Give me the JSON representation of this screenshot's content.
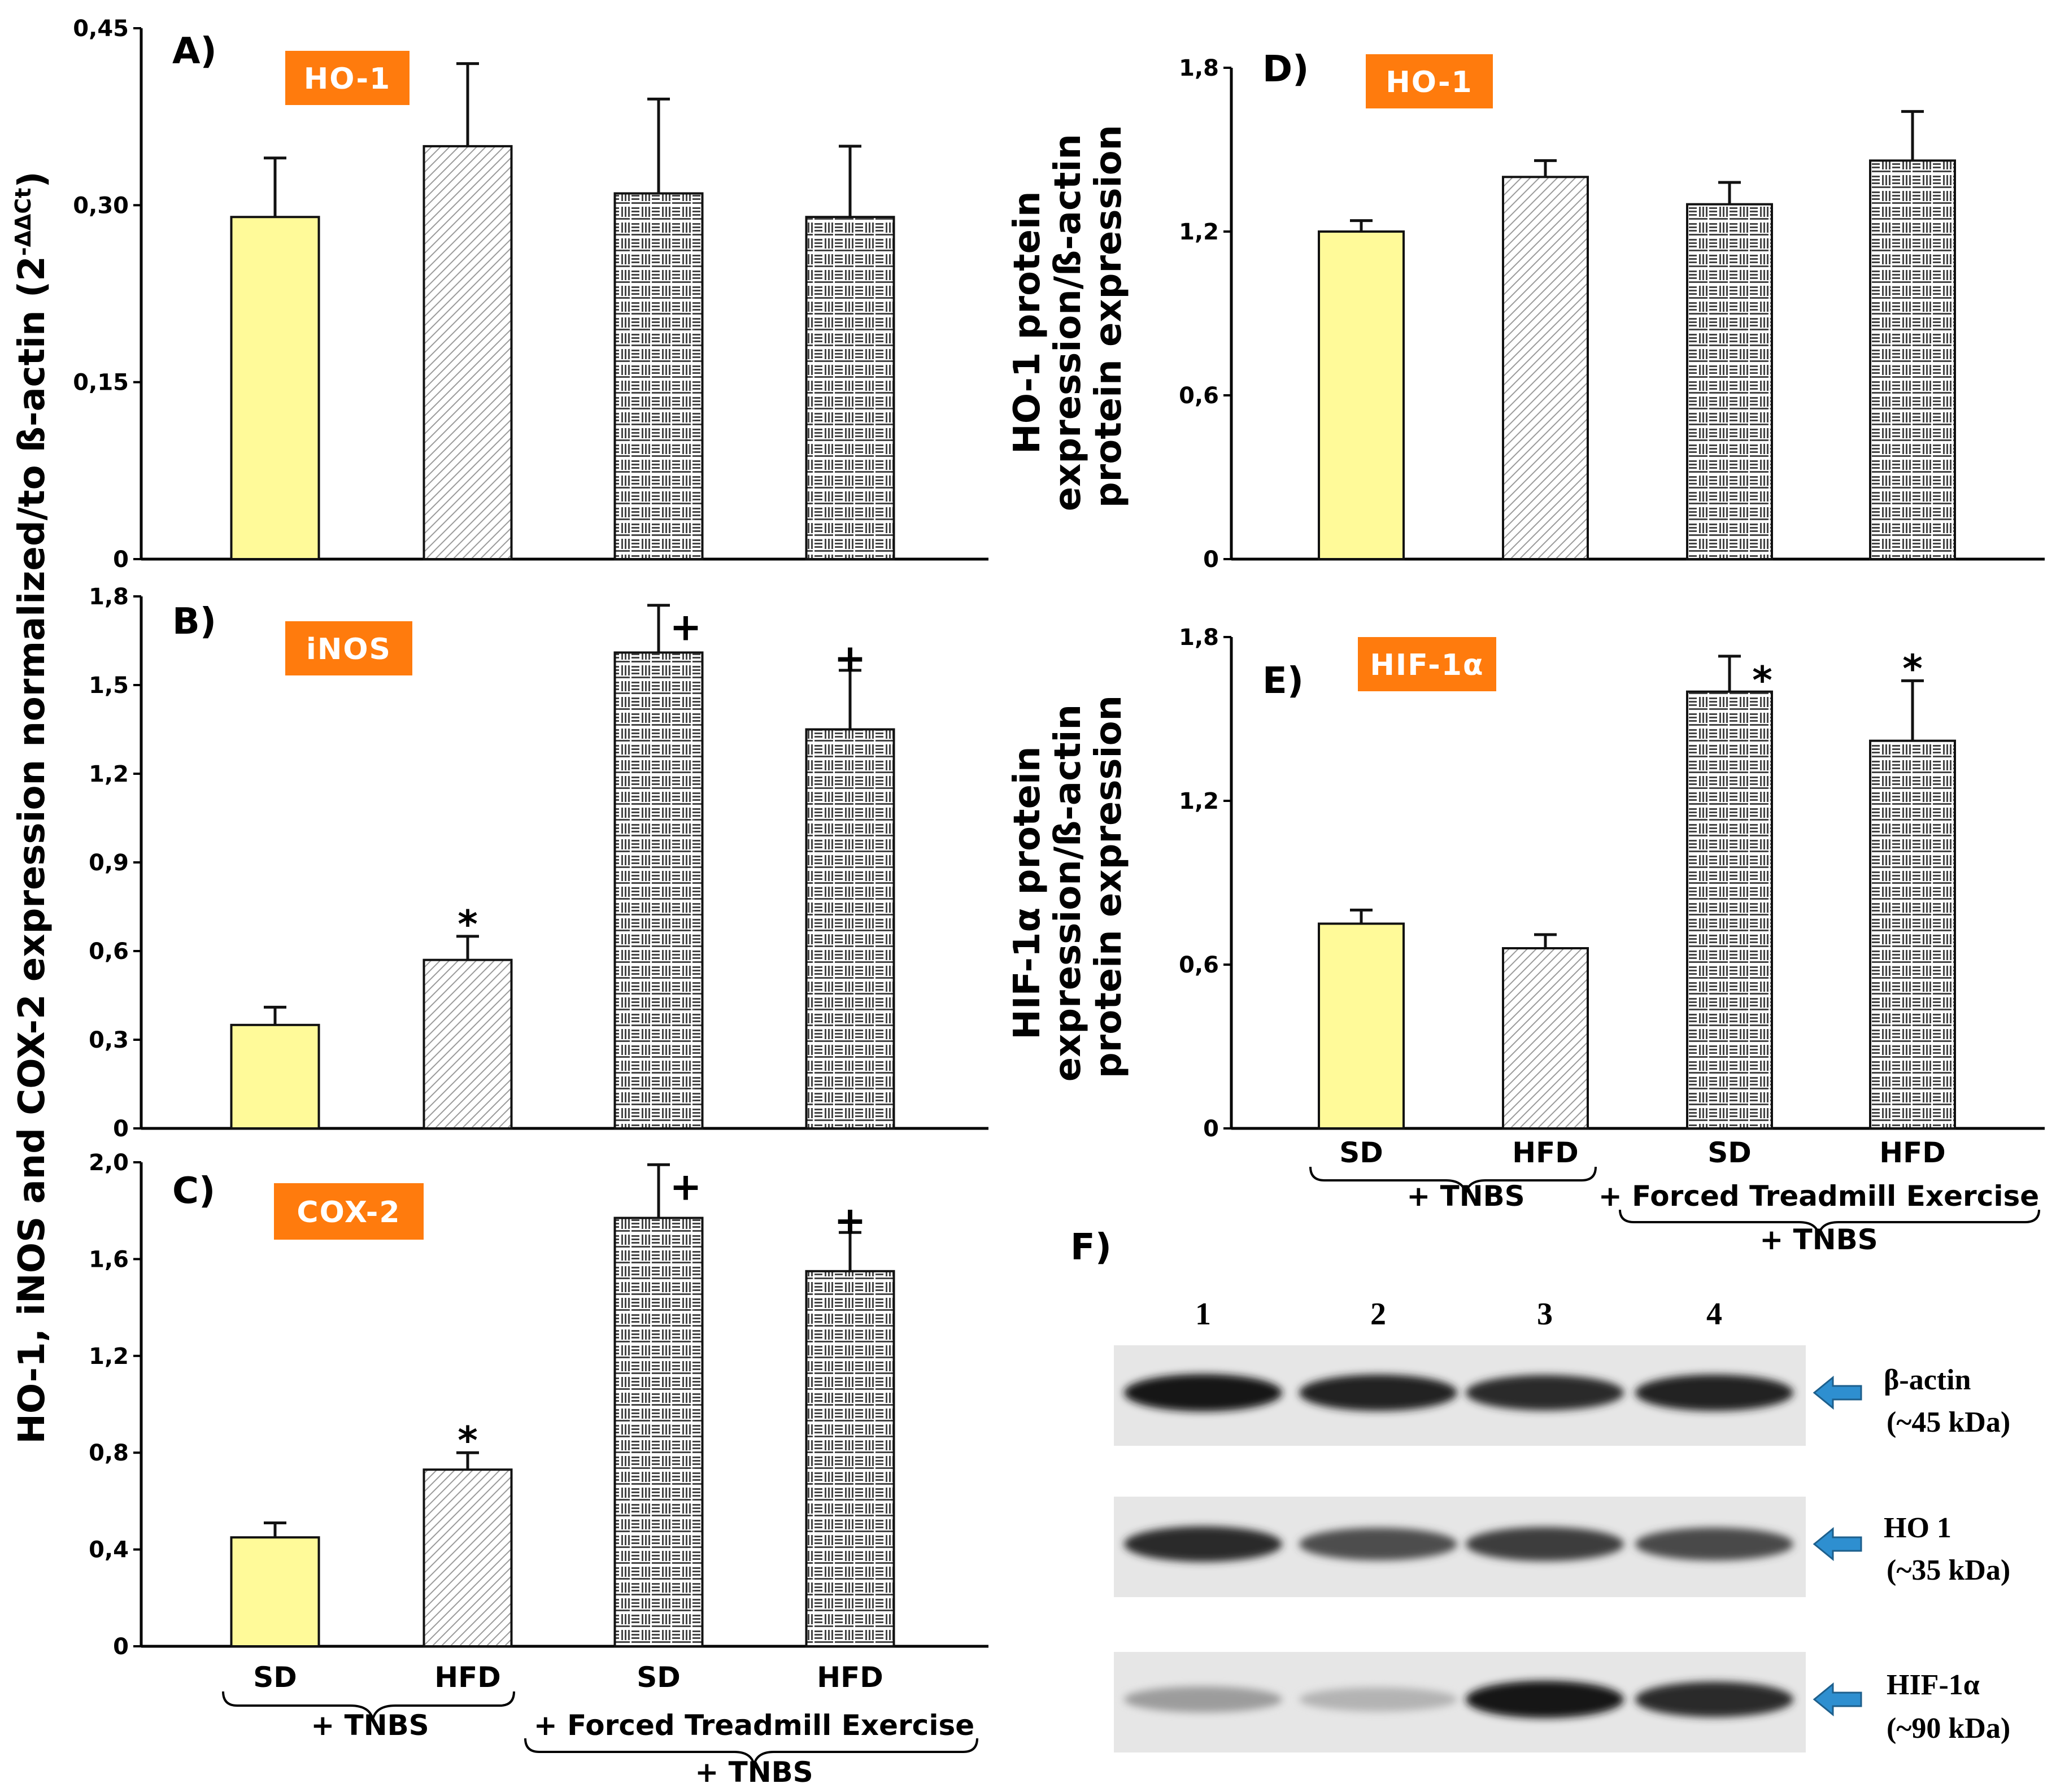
{
  "colors": {
    "badge": "#ff7b0d",
    "sd_fill": "#fffa99",
    "blot_bg": "#e6e6e6",
    "arrow": "#2e8fd0"
  },
  "x_axis": {
    "categories": [
      "SD",
      "HFD",
      "SD",
      "HFD"
    ],
    "group1": "+ TNBS",
    "group2_line1": "+ Forced Treadmill Exercise",
    "group2_line2": "+ TNBS"
  },
  "y_label_left": "HO-1, iNOS and COX-2 expression normalized/to ß-actin (2",
  "y_label_left_sup": "-ΔΔCt",
  "y_label_left_close": ")",
  "y_label_D": [
    "HO-1 protein",
    "expression/ß-actin",
    "protein expression"
  ],
  "y_label_E": [
    "HIF-1α protein",
    "expression/ß-actin",
    "protein expression"
  ],
  "chart_data": [
    {
      "panel": "A)",
      "title": "HO-1",
      "type": "bar",
      "categories": [
        "SD",
        "HFD",
        "SD",
        "HFD"
      ],
      "values": [
        0.29,
        0.35,
        0.31,
        0.29
      ],
      "errors": [
        0.05,
        0.07,
        0.08,
        0.06
      ],
      "marks": [
        "",
        "",
        "",
        ""
      ],
      "ylim": [
        0,
        0.45
      ],
      "ticks": [
        0,
        0.15,
        0.3,
        0.45
      ],
      "tick_labels": [
        "0",
        "0,15",
        "0,30",
        "0,45"
      ]
    },
    {
      "panel": "B)",
      "title": "iNOS",
      "type": "bar",
      "categories": [
        "SD",
        "HFD",
        "SD",
        "HFD"
      ],
      "values": [
        0.35,
        0.57,
        1.61,
        1.35
      ],
      "errors": [
        0.06,
        0.08,
        0.16,
        0.2
      ],
      "marks": [
        "",
        "*",
        "+",
        "+"
      ],
      "ylim": [
        0,
        1.8
      ],
      "ticks": [
        0,
        0.3,
        0.6,
        0.9,
        1.2,
        1.5,
        1.8
      ],
      "tick_labels": [
        "0",
        "0,3",
        "0,6",
        "0,9",
        "1,2",
        "1,5",
        "1,8"
      ]
    },
    {
      "panel": "C)",
      "title": "COX-2",
      "type": "bar",
      "categories": [
        "SD",
        "HFD",
        "SD",
        "HFD"
      ],
      "values": [
        0.45,
        0.73,
        1.77,
        1.55
      ],
      "errors": [
        0.06,
        0.07,
        0.22,
        0.16
      ],
      "marks": [
        "",
        "*",
        "+",
        "+"
      ],
      "ylim": [
        0,
        2.0
      ],
      "ticks": [
        0,
        0.4,
        0.8,
        1.2,
        1.6,
        2.0
      ],
      "tick_labels": [
        "0",
        "0,4",
        "0,8",
        "1,2",
        "1,6",
        "2,0"
      ]
    },
    {
      "panel": "D)",
      "title": "HO-1",
      "type": "bar",
      "categories": [
        "SD",
        "HFD",
        "SD",
        "HFD"
      ],
      "values": [
        1.2,
        1.4,
        1.3,
        1.46
      ],
      "errors": [
        0.04,
        0.06,
        0.08,
        0.18
      ],
      "marks": [
        "",
        "",
        "",
        ""
      ],
      "ylim": [
        0,
        1.8
      ],
      "ticks": [
        0,
        0.6,
        1.2,
        1.8
      ],
      "tick_labels": [
        "0",
        "0,6",
        "1,2",
        "1,8"
      ]
    },
    {
      "panel": "E)",
      "title": "HIF-1α",
      "type": "bar",
      "categories": [
        "SD",
        "HFD",
        "SD",
        "HFD"
      ],
      "values": [
        0.75,
        0.66,
        1.6,
        1.42
      ],
      "errors": [
        0.05,
        0.05,
        0.13,
        0.22
      ],
      "marks": [
        "",
        "",
        "*",
        "*"
      ],
      "ylim": [
        0,
        1.8
      ],
      "ticks": [
        0,
        0.6,
        1.2,
        1.8
      ],
      "tick_labels": [
        "0",
        "0,6",
        "1,2",
        "1,8"
      ]
    }
  ],
  "blot": {
    "panel": "F)",
    "lanes": [
      "1",
      "2",
      "3",
      "4"
    ],
    "rows": [
      {
        "name": "β-actin",
        "size": "(~45 kDa)",
        "intensity": [
          0.95,
          0.9,
          0.85,
          0.9
        ]
      },
      {
        "name": "HO 1",
        "size": "(~35 kDa)",
        "intensity": [
          0.85,
          0.7,
          0.78,
          0.72
        ]
      },
      {
        "name": "HIF-1α",
        "size": "(~90 kDa)",
        "intensity": [
          0.35,
          0.25,
          0.95,
          0.85
        ]
      }
    ]
  }
}
